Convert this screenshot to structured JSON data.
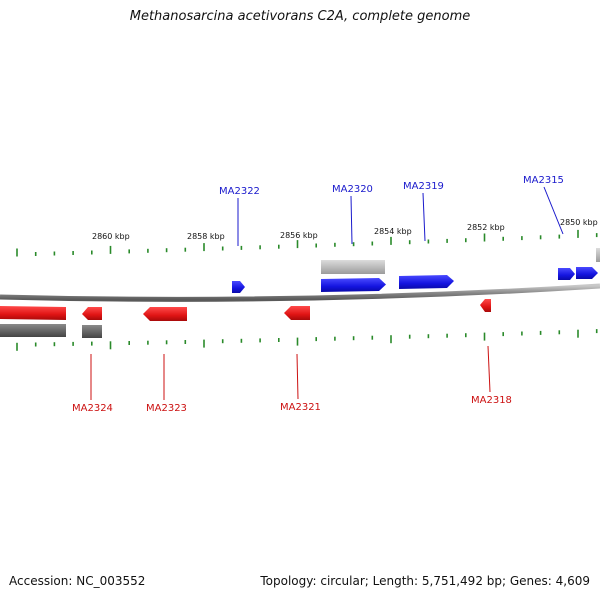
{
  "title": "Methanosarcina acetivorans C2A, complete genome",
  "footer": {
    "accession": "Accession: NC_003552",
    "stats": "Topology: circular; Length: 5,751,492 bp; Genes: 4,609"
  },
  "colors": {
    "forward": "#1a1aee",
    "reverse": "#ee1111",
    "backbone": "#888888",
    "tick": "#2a8a2a",
    "label_forward": "#1a1acc",
    "label_reverse": "#cc1111"
  },
  "scale_labels": [
    "2860 kbp",
    "2858 kbp",
    "2856 kbp",
    "2854 kbp",
    "2852 kbp",
    "2850 kbp"
  ],
  "genes_forward": [
    {
      "name": "MA2322"
    },
    {
      "name": "MA2320"
    },
    {
      "name": "MA2319"
    },
    {
      "name": "MA2315"
    }
  ],
  "genes_reverse": [
    {
      "name": "MA2324"
    },
    {
      "name": "MA2323"
    },
    {
      "name": "MA2321"
    },
    {
      "name": "MA2318"
    }
  ]
}
